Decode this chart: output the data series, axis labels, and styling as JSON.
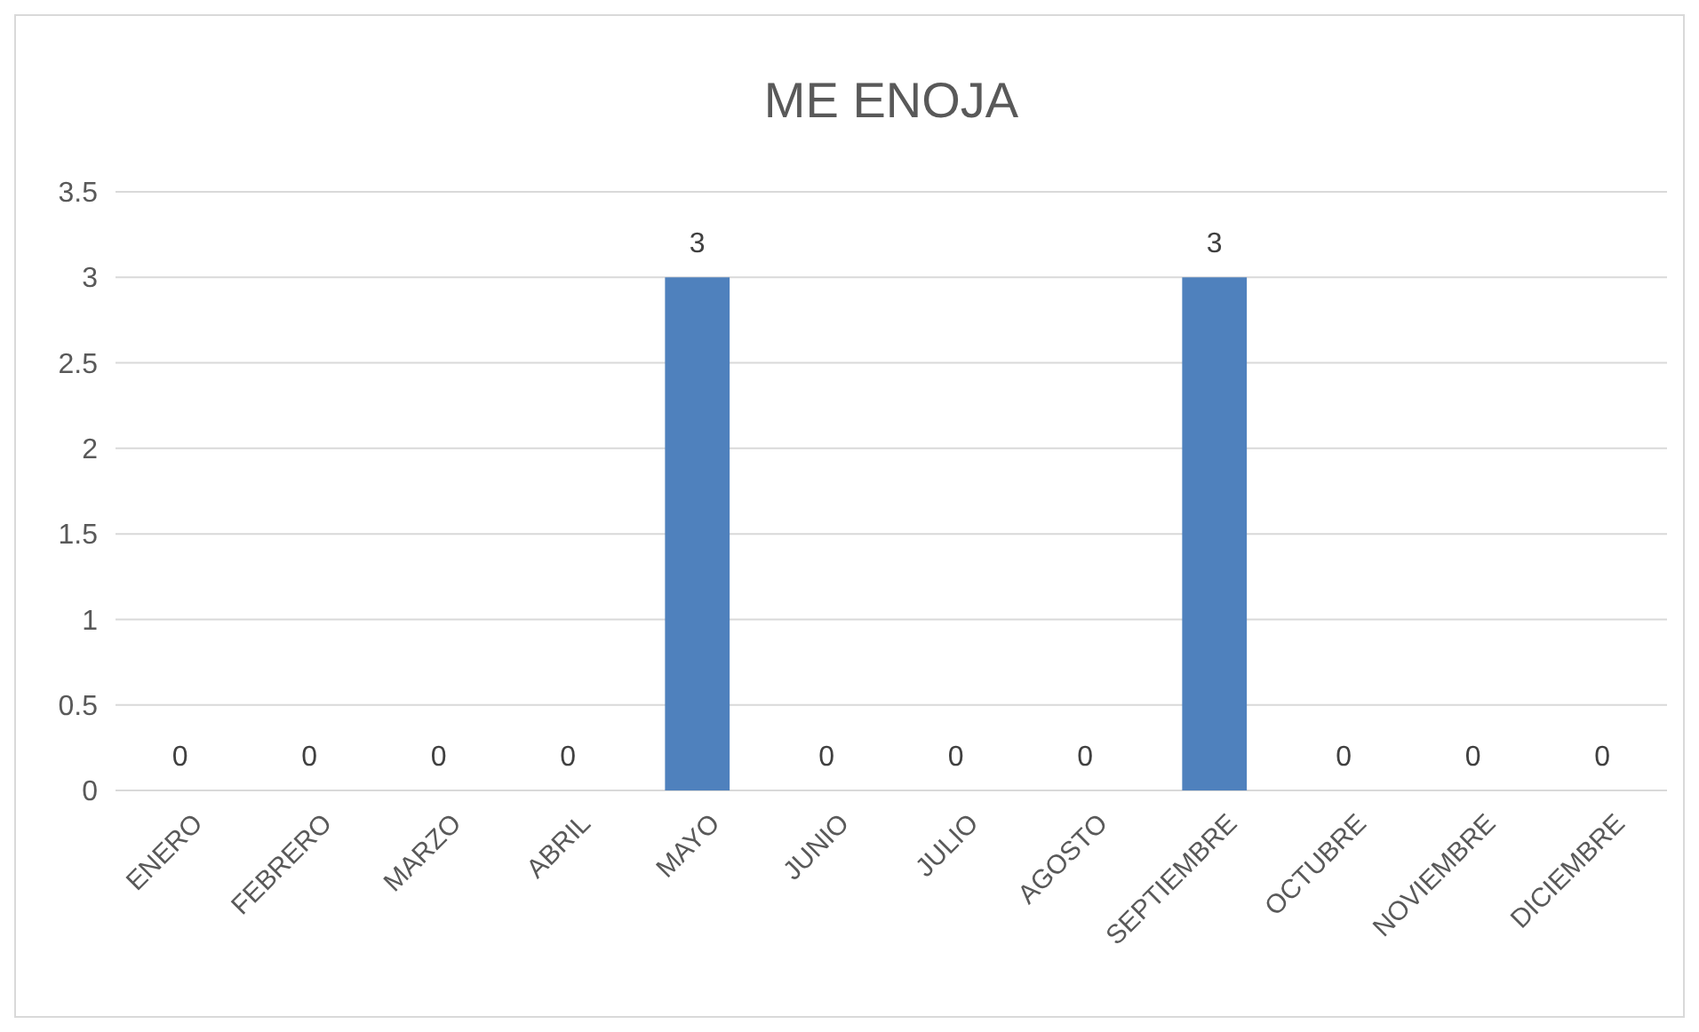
{
  "chart_data": {
    "type": "bar",
    "title": "ME ENOJA",
    "categories": [
      "ENERO",
      "FEBRERO",
      "MARZO",
      "ABRIL",
      "MAYO",
      "JUNIO",
      "JULIO",
      "AGOSTO",
      "SEPTIEMBRE",
      "OCTUBRE",
      "NOVIEMBRE",
      "DICIEMBRE"
    ],
    "values": [
      0,
      0,
      0,
      0,
      3,
      0,
      0,
      0,
      3,
      0,
      0,
      0
    ],
    "color": "#4f81bd",
    "ylim": [
      0,
      3.5
    ],
    "yticks": [
      0,
      0.5,
      1,
      1.5,
      2,
      2.5,
      3,
      3.5
    ],
    "grid": true,
    "data_labels": true
  }
}
